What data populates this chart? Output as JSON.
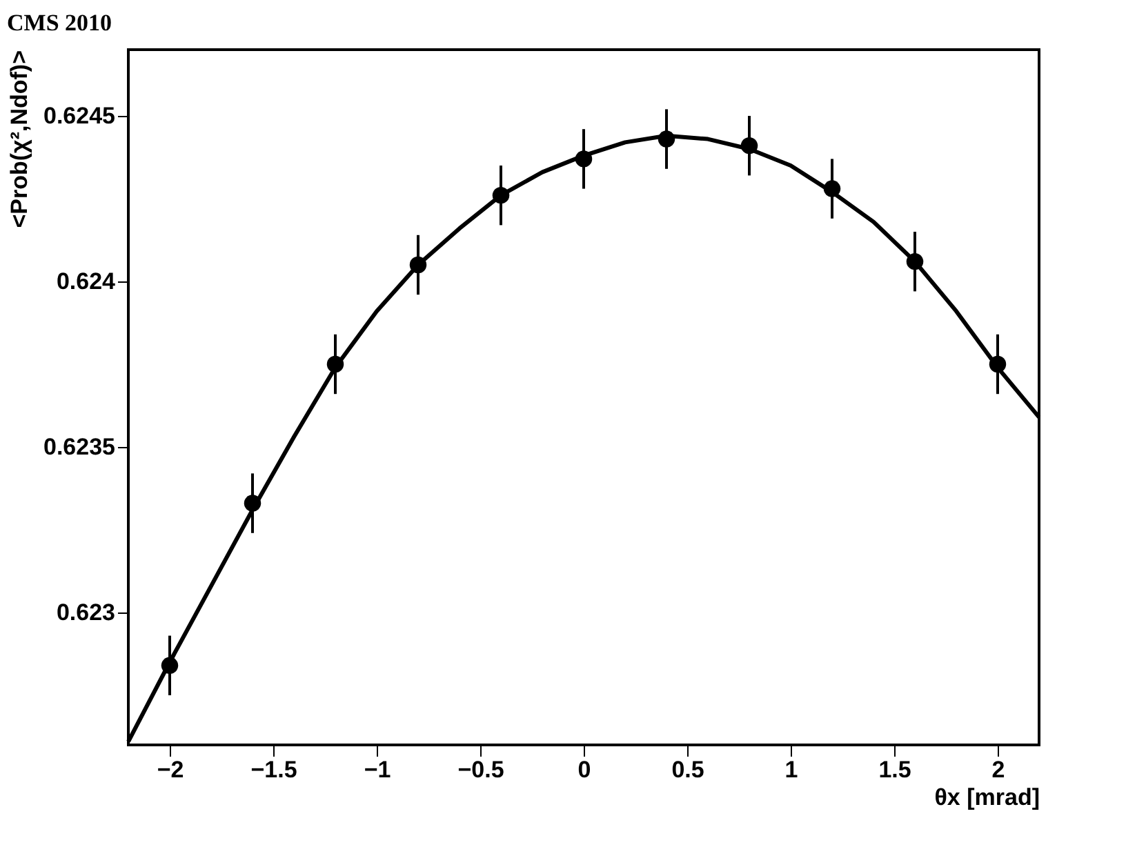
{
  "chart_data": {
    "type": "scatter",
    "title": "CMS 2010",
    "xlabel": "θx [mrad]",
    "ylabel": "<Prob(χ²,Ndof)>",
    "x": [
      -2.0,
      -1.6,
      -1.2,
      -0.8,
      -0.4,
      0.0,
      0.4,
      0.8,
      1.2,
      1.6,
      2.0
    ],
    "series": [
      {
        "color": "#000000",
        "marker": "circle",
        "values": [
          0.62284,
          0.62333,
          0.62375,
          0.62405,
          0.62426,
          0.62437,
          0.62443,
          0.62441,
          0.62428,
          0.62406,
          0.62375
        ],
        "errors": [
          9e-05,
          9e-05,
          9e-05,
          9e-05,
          9e-05,
          9e-05,
          9e-05,
          9e-05,
          9e-05,
          9e-05,
          9e-05
        ]
      },
      {
        "type": "line",
        "color": "#000000",
        "marker": "none",
        "line_style": "solid",
        "x": [
          -2.2,
          -2.0,
          -1.8,
          -1.6,
          -1.4,
          -1.2,
          -1.0,
          -0.8,
          -0.6,
          -0.4,
          -0.2,
          0.0,
          0.2,
          0.4,
          0.6,
          0.8,
          1.0,
          1.2,
          1.4,
          1.6,
          1.8,
          2.0,
          2.2
        ],
        "values": [
          0.62261,
          0.62285,
          0.62308,
          0.62331,
          0.62353,
          0.62374,
          0.62391,
          0.62405,
          0.62416,
          0.62426,
          0.62433,
          0.62438,
          0.62442,
          0.62444,
          0.62443,
          0.6244,
          0.62435,
          0.62427,
          0.62418,
          0.62406,
          0.62391,
          0.62374,
          0.62359
        ]
      }
    ],
    "xlim": [
      -2.2,
      2.2
    ],
    "xticks": [
      -2,
      -1.5,
      -1,
      -0.5,
      0,
      0.5,
      1,
      1.5,
      2
    ],
    "ylim": [
      0.6226,
      0.6247
    ],
    "yticks": [
      0.623,
      0.6235,
      0.624,
      0.6245
    ]
  }
}
